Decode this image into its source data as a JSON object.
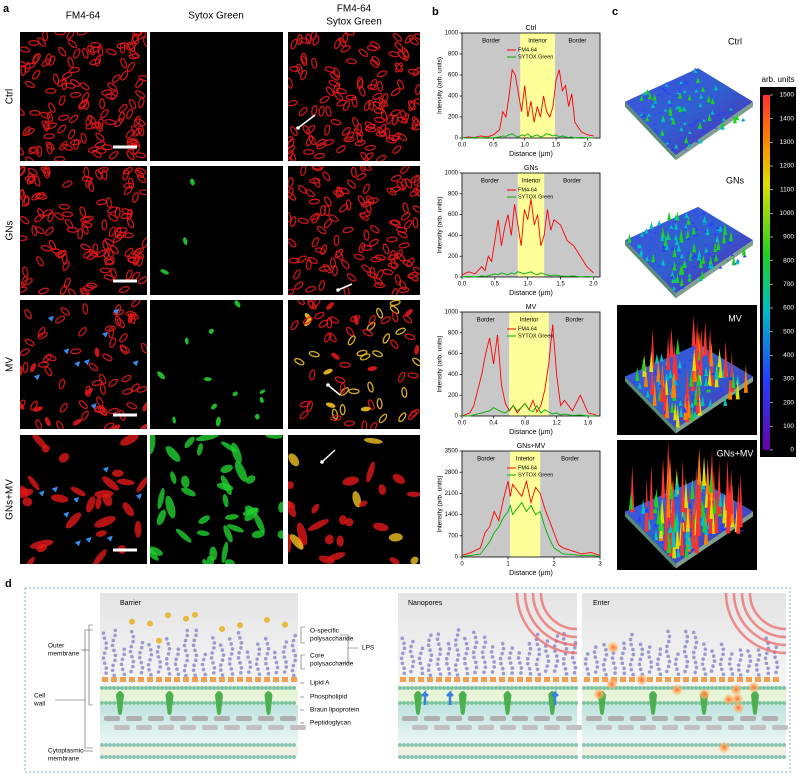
{
  "panel_letters": [
    "a",
    "b",
    "c",
    "d"
  ],
  "panel_a": {
    "column_headers": [
      "FM4-64",
      "Sytox Green"
    ],
    "overlay_header": [
      "FM4-64",
      "Sytox Green"
    ],
    "rows": [
      "Ctrl",
      "GNs",
      "MV",
      "GNs+MV"
    ]
  },
  "chart_data": [
    {
      "type": "line",
      "title": "Ctrl",
      "xlabel": "Distance (μm)",
      "ylabel": "Intensity (arb. units)",
      "xlim": [
        0,
        2.2
      ],
      "ylim": [
        0,
        1000
      ],
      "xticks": [
        {
          "value": 0,
          "label": "0.0"
        },
        0.5,
        {
          "value": 1,
          "label": "1.0"
        },
        1.5,
        {
          "value": 2,
          "label": "2.0"
        }
      ],
      "yticks": [
        0,
        200,
        400,
        600,
        800,
        1000
      ],
      "regions": [
        {
          "label": "Border",
          "start": 0,
          "end": 0.93,
          "color": "#c8c8c8"
        },
        {
          "label": "Interior",
          "start": 0.93,
          "end": 1.48,
          "color": "#ffff99"
        },
        {
          "label": "Border",
          "start": 1.48,
          "end": 2.2,
          "color": "#c8c8c8"
        }
      ],
      "x": [
        0,
        0.1,
        0.2,
        0.3,
        0.4,
        0.5,
        0.6,
        0.65,
        0.7,
        0.75,
        0.8,
        0.85,
        0.9,
        0.95,
        1.0,
        1.05,
        1.1,
        1.15,
        1.2,
        1.25,
        1.3,
        1.35,
        1.4,
        1.45,
        1.5,
        1.55,
        1.6,
        1.65,
        1.7,
        1.75,
        1.8,
        1.9,
        2.0,
        2.1
      ],
      "series": [
        {
          "name": "FM4-64",
          "color": "#ff0000",
          "values": [
            0,
            10,
            5,
            20,
            10,
            30,
            80,
            250,
            200,
            400,
            650,
            600,
            420,
            250,
            500,
            200,
            350,
            150,
            300,
            200,
            400,
            250,
            200,
            300,
            550,
            650,
            450,
            500,
            300,
            420,
            150,
            60,
            30,
            20
          ]
        },
        {
          "name": "SYTOX Green",
          "color": "#00b000",
          "values": [
            0,
            0,
            5,
            0,
            5,
            0,
            10,
            20,
            15,
            30,
            40,
            20,
            10,
            30,
            20,
            40,
            10,
            20,
            30,
            10,
            20,
            40,
            30,
            20,
            30,
            10,
            20,
            10,
            5,
            10,
            0,
            5,
            0,
            0
          ]
        }
      ]
    },
    {
      "type": "line",
      "title": "GNs",
      "xlabel": "Distance (μm)",
      "ylabel": "Intensity (arb. units)",
      "xlim": [
        0,
        2.1
      ],
      "ylim": [
        0,
        1000
      ],
      "xticks": [
        {
          "value": 0,
          "label": "0.0"
        },
        0.5,
        {
          "value": 1,
          "label": "1.0"
        },
        1.5,
        {
          "value": 2,
          "label": "2.0"
        }
      ],
      "yticks": [
        0,
        200,
        400,
        600,
        800,
        1000
      ],
      "regions": [
        {
          "label": "Border",
          "start": 0,
          "end": 0.85,
          "color": "#c8c8c8"
        },
        {
          "label": "Interior",
          "start": 0.85,
          "end": 1.25,
          "color": "#ffff99"
        },
        {
          "label": "Border",
          "start": 1.25,
          "end": 2.1,
          "color": "#c8c8c8"
        }
      ],
      "x": [
        0,
        0.1,
        0.2,
        0.3,
        0.35,
        0.4,
        0.45,
        0.5,
        0.55,
        0.6,
        0.65,
        0.7,
        0.75,
        0.8,
        0.85,
        0.9,
        0.95,
        1.0,
        1.05,
        1.1,
        1.15,
        1.2,
        1.25,
        1.3,
        1.35,
        1.4,
        1.5,
        1.6,
        1.7,
        1.8,
        1.9,
        2.0
      ],
      "series": [
        {
          "name": "FM4-64",
          "color": "#ff0000",
          "values": [
            20,
            50,
            30,
            100,
            60,
            200,
            150,
            350,
            550,
            300,
            480,
            600,
            400,
            700,
            500,
            300,
            650,
            550,
            750,
            500,
            600,
            300,
            400,
            650,
            450,
            550,
            500,
            350,
            300,
            200,
            100,
            40
          ]
        },
        {
          "name": "SYTOX Green",
          "color": "#00b000",
          "values": [
            0,
            5,
            0,
            10,
            5,
            10,
            20,
            30,
            20,
            40,
            30,
            20,
            40,
            30,
            50,
            40,
            30,
            40,
            50,
            30,
            20,
            40,
            30,
            20,
            10,
            20,
            10,
            5,
            10,
            0,
            5,
            0
          ]
        }
      ]
    },
    {
      "type": "line",
      "title": "MV",
      "xlabel": "Distance (μm)",
      "ylabel": "Intensity (arb. units)",
      "xlim": [
        0,
        1.75
      ],
      "ylim": [
        0,
        1000
      ],
      "xticks": [
        {
          "value": 0,
          "label": "0.0"
        },
        0.4,
        0.8,
        1.2,
        1.6
      ],
      "yticks": [
        0,
        200,
        400,
        600,
        800,
        1000
      ],
      "regions": [
        {
          "label": "Border",
          "start": 0,
          "end": 0.6,
          "color": "#c8c8c8"
        },
        {
          "label": "Interior",
          "start": 0.6,
          "end": 1.1,
          "color": "#ffff99"
        },
        {
          "label": "Border",
          "start": 1.1,
          "end": 1.75,
          "color": "#c8c8c8"
        }
      ],
      "x": [
        0,
        0.1,
        0.15,
        0.2,
        0.25,
        0.3,
        0.35,
        0.4,
        0.45,
        0.5,
        0.55,
        0.6,
        0.65,
        0.7,
        0.75,
        0.8,
        0.85,
        0.9,
        0.95,
        1.0,
        1.05,
        1.1,
        1.15,
        1.2,
        1.25,
        1.3,
        1.4,
        1.5,
        1.6,
        1.7
      ],
      "series": [
        {
          "name": "FM4-64",
          "color": "#ff0000",
          "values": [
            0,
            30,
            100,
            250,
            400,
            600,
            750,
            500,
            780,
            300,
            120,
            50,
            100,
            30,
            80,
            120,
            60,
            150,
            40,
            100,
            250,
            500,
            880,
            400,
            100,
            150,
            50,
            200,
            30,
            10
          ]
        },
        {
          "name": "SYTOX Green",
          "color": "#00b000",
          "values": [
            0,
            0,
            10,
            20,
            30,
            40,
            50,
            80,
            60,
            40,
            30,
            60,
            100,
            50,
            80,
            120,
            60,
            40,
            100,
            30,
            60,
            40,
            20,
            30,
            10,
            20,
            5,
            10,
            0,
            0
          ]
        }
      ]
    },
    {
      "type": "line",
      "title": "GNs+MV",
      "xlabel": "Distance (μm)",
      "ylabel": "Intensity (arb. units)",
      "xlim": [
        0,
        3
      ],
      "ylim": [
        0,
        3500
      ],
      "xticks": [
        0,
        1,
        2,
        3
      ],
      "yticks": [
        0,
        700,
        1400,
        2100,
        2800,
        3500
      ],
      "regions": [
        {
          "label": "Border",
          "start": 0,
          "end": 1.05,
          "color": "#c8c8c8"
        },
        {
          "label": "Interior",
          "start": 1.05,
          "end": 1.7,
          "color": "#ffff99"
        },
        {
          "label": "Border",
          "start": 1.7,
          "end": 3,
          "color": "#c8c8c8"
        }
      ],
      "x": [
        0,
        0.2,
        0.4,
        0.5,
        0.6,
        0.7,
        0.8,
        0.9,
        1.0,
        1.05,
        1.1,
        1.2,
        1.3,
        1.4,
        1.5,
        1.6,
        1.7,
        1.8,
        1.9,
        2.0,
        2.1,
        2.2,
        2.4,
        2.6,
        2.8,
        3.0
      ],
      "series": [
        {
          "name": "FM4-64",
          "color": "#ff0000",
          "values": [
            50,
            150,
            300,
            800,
            1000,
            1500,
            1200,
            1900,
            2500,
            2000,
            2400,
            2200,
            2000,
            2500,
            1800,
            2300,
            2100,
            1600,
            1200,
            800,
            400,
            300,
            200,
            100,
            150,
            50
          ]
        },
        {
          "name": "SYTOX Green",
          "color": "#00b000",
          "values": [
            20,
            50,
            100,
            300,
            500,
            800,
            1000,
            1300,
            1500,
            1700,
            1400,
            1600,
            1800,
            1500,
            1700,
            1400,
            1500,
            1000,
            600,
            300,
            200,
            100,
            80,
            50,
            60,
            20
          ]
        }
      ]
    }
  ],
  "panel_c": {
    "labels": [
      "Ctrl",
      "GNs",
      "MV",
      "GNs+MV"
    ],
    "colorbar": {
      "label": "arb. units",
      "lim": [
        0,
        1500
      ],
      "ticks": [
        0,
        100,
        200,
        300,
        400,
        500,
        600,
        700,
        800,
        900,
        1000,
        1100,
        1200,
        1300,
        1400,
        1500
      ]
    }
  },
  "panel_d": {
    "stages": [
      "Barrier",
      "Nanopores",
      "Enter"
    ],
    "o_specific": [
      "O-specific",
      "polysaccharide"
    ],
    "core": [
      "Core",
      "polysaccharide"
    ],
    "lps": "LPS",
    "lipid_a": "Lipid A",
    "phospholipid": "Phospholipid",
    "braun": "Braun lipoprotein",
    "peptidoglycan": "Peptidoglycan",
    "outer_membrane": [
      "Outer",
      "membrane"
    ],
    "cell_wall": [
      "Cell",
      "wall"
    ],
    "cytoplasmic": [
      "Cytoplasmic",
      "membrane"
    ]
  }
}
